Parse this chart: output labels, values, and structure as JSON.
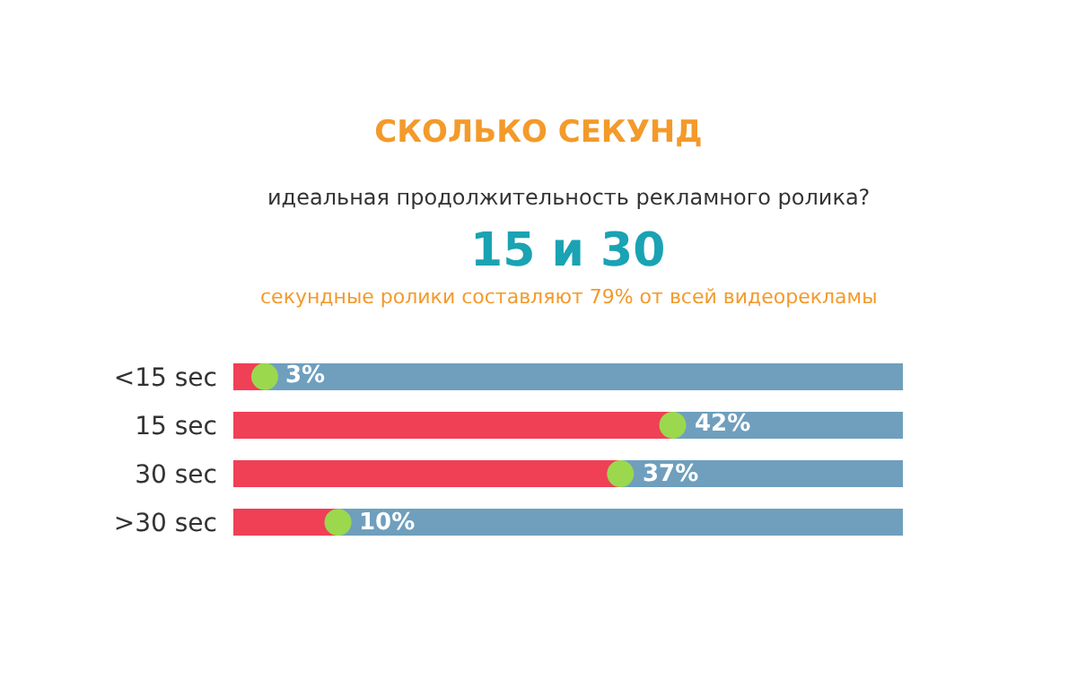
{
  "chart_data": {
    "type": "bar",
    "orientation": "horizontal",
    "stacked": true,
    "title": "СКОЛЬКО СЕКУНД",
    "subtitle": "идеальная продолжительность рекламного ролика?",
    "annotations": [
      "15 и 30",
      "секундные ролики составляют 79% от всей видеорекламы"
    ],
    "categories": [
      "<15 sec",
      "15 sec",
      "30 sec",
      ">30 sec"
    ],
    "series": [
      {
        "color": "#ef4056",
        "values": [
          3,
          42,
          37,
          10
        ],
        "value_labels": [
          "3%",
          "42%",
          "37%",
          "10%"
        ]
      },
      {
        "color": "#6f9fbd",
        "values": [
          61,
          22,
          27,
          54
        ]
      },
      {
        "type": "scatter",
        "color": "#9bd84e",
        "marker": "circle",
        "values": [
          3,
          42,
          37,
          10
        ]
      }
    ],
    "xlim": [
      0,
      64
    ],
    "tick_labels": "y"
  }
}
